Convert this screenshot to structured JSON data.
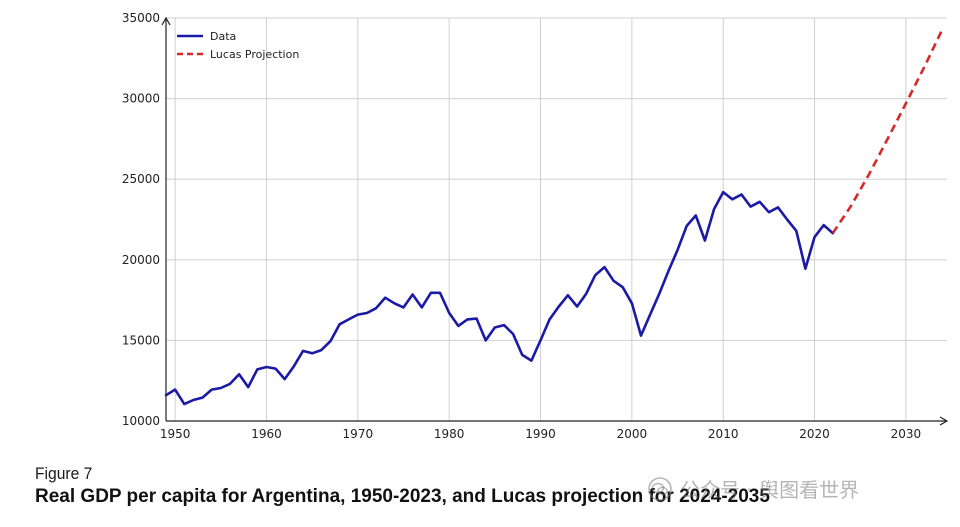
{
  "chart_data": {
    "type": "line",
    "xlabel": "",
    "ylabel": "",
    "xlim": [
      1949,
      2034.5
    ],
    "ylim": [
      10000,
      35000
    ],
    "xticks": [
      1950,
      1960,
      1970,
      1980,
      1990,
      2000,
      2010,
      2020,
      2030
    ],
    "yticks": [
      10000,
      15000,
      20000,
      25000,
      30000,
      35000
    ],
    "grid": true,
    "legend_position": "top-left",
    "series": [
      {
        "name": "Data",
        "color": "#1a1aa6",
        "style": "solid",
        "x": [
          1949,
          1950,
          1951,
          1952,
          1953,
          1954,
          1955,
          1956,
          1957,
          1958,
          1959,
          1960,
          1961,
          1962,
          1963,
          1964,
          1965,
          1966,
          1967,
          1968,
          1969,
          1970,
          1971,
          1972,
          1973,
          1974,
          1975,
          1976,
          1977,
          1978,
          1979,
          1980,
          1981,
          1982,
          1983,
          1984,
          1985,
          1986,
          1987,
          1988,
          1989,
          1990,
          1991,
          1992,
          1993,
          1994,
          1995,
          1996,
          1997,
          1998,
          1999,
          2000,
          2001,
          2002,
          2003,
          2004,
          2005,
          2006,
          2007,
          2008,
          2009,
          2010,
          2011,
          2012,
          2013,
          2014,
          2015,
          2016,
          2017,
          2018,
          2019,
          2020,
          2021,
          2022
        ],
        "values": [
          11600,
          11950,
          11050,
          11300,
          11450,
          11950,
          12050,
          12300,
          12900,
          12100,
          13200,
          13350,
          13250,
          12600,
          13400,
          14350,
          14200,
          14400,
          14950,
          16000,
          16300,
          16600,
          16700,
          17000,
          17650,
          17300,
          17050,
          17850,
          17050,
          17950,
          17950,
          16700,
          15900,
          16300,
          16350,
          15000,
          15800,
          15950,
          15400,
          14100,
          13750,
          15000,
          16300,
          17100,
          17800,
          17100,
          17900,
          19050,
          19550,
          18700,
          18300,
          17300,
          15300,
          16600,
          17900,
          19300,
          20600,
          22100,
          22750,
          21200,
          23150,
          24200,
          23750,
          24050,
          23300,
          23600,
          22950,
          23250,
          22500,
          21800,
          19450,
          21400,
          22150,
          21650
        ]
      },
      {
        "name": "Lucas Projection",
        "color": "#d62828",
        "style": "dashed",
        "x": [
          2022,
          2024,
          2026,
          2028,
          2030,
          2032,
          2034
        ],
        "values": [
          21650,
          23350,
          25350,
          27500,
          29700,
          31950,
          34300
        ]
      }
    ]
  },
  "caption": {
    "figure_label": "Figure 7",
    "title": "Real GDP per capita for Argentina, 1950-2023, and Lucas projection for 2024-2035"
  },
  "watermark": {
    "text": "公众号 · 舆图看世界"
  }
}
